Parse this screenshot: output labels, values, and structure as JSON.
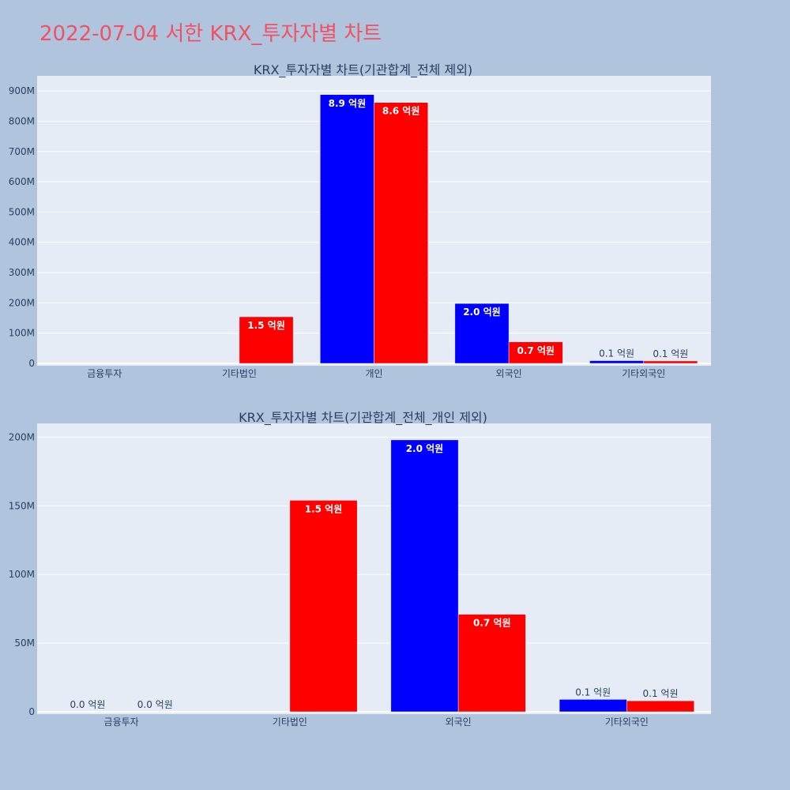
{
  "page": {
    "title": "2022-07-04 서한 KRX_투자자별 차트"
  },
  "colors": {
    "background": "#b0c4de",
    "plot_bg": "#e5ecf6",
    "grid": "#ffffff",
    "title": "#ef5363",
    "buy": "#0000ff",
    "sell": "#ff0000"
  },
  "chart_data": [
    {
      "type": "bar",
      "title": "KRX_투자자별 차트(기관합계_전체 제외)",
      "categories": [
        "금융투자",
        "기타법인",
        "개인",
        "외국인",
        "기타외국인"
      ],
      "series": [
        {
          "color": "#0000ff",
          "values": [
            0,
            0,
            888000000,
            198000000,
            9000000
          ],
          "labels": [
            "",
            "",
            "8.9 억원",
            "2.0 억원",
            "0.1 억원"
          ]
        },
        {
          "color": "#ff0000",
          "values": [
            0,
            154000000,
            862000000,
            71000000,
            8000000
          ],
          "labels": [
            "",
            "1.5 억원",
            "8.6 억원",
            "0.7 억원",
            "0.1 억원"
          ]
        }
      ],
      "ylim": [
        0,
        950000000
      ],
      "yticks": [
        0,
        100000000,
        200000000,
        300000000,
        400000000,
        500000000,
        600000000,
        700000000,
        800000000,
        900000000
      ],
      "ytick_labels": [
        "0",
        "100M",
        "200M",
        "300M",
        "400M",
        "500M",
        "600M",
        "700M",
        "800M",
        "900M"
      ],
      "grid": true
    },
    {
      "type": "bar",
      "title": "KRX_투자자별 차트(기관합계_전체_개인 제외)",
      "categories": [
        "금융투자",
        "기타법인",
        "외국인",
        "기타외국인"
      ],
      "series": [
        {
          "color": "#0000ff",
          "values": [
            0,
            0,
            198000000,
            9000000
          ],
          "labels": [
            "0.0 억원",
            "",
            "2.0 억원",
            "0.1 억원"
          ]
        },
        {
          "color": "#ff0000",
          "values": [
            0,
            154000000,
            71000000,
            8000000
          ],
          "labels": [
            "0.0 억원",
            "1.5 억원",
            "0.7 억원",
            "0.1 억원"
          ]
        }
      ],
      "ylim": [
        0,
        210000000
      ],
      "yticks": [
        0,
        50000000,
        100000000,
        150000000,
        200000000
      ],
      "ytick_labels": [
        "0",
        "50M",
        "100M",
        "150M",
        "200M"
      ],
      "grid": true
    }
  ]
}
